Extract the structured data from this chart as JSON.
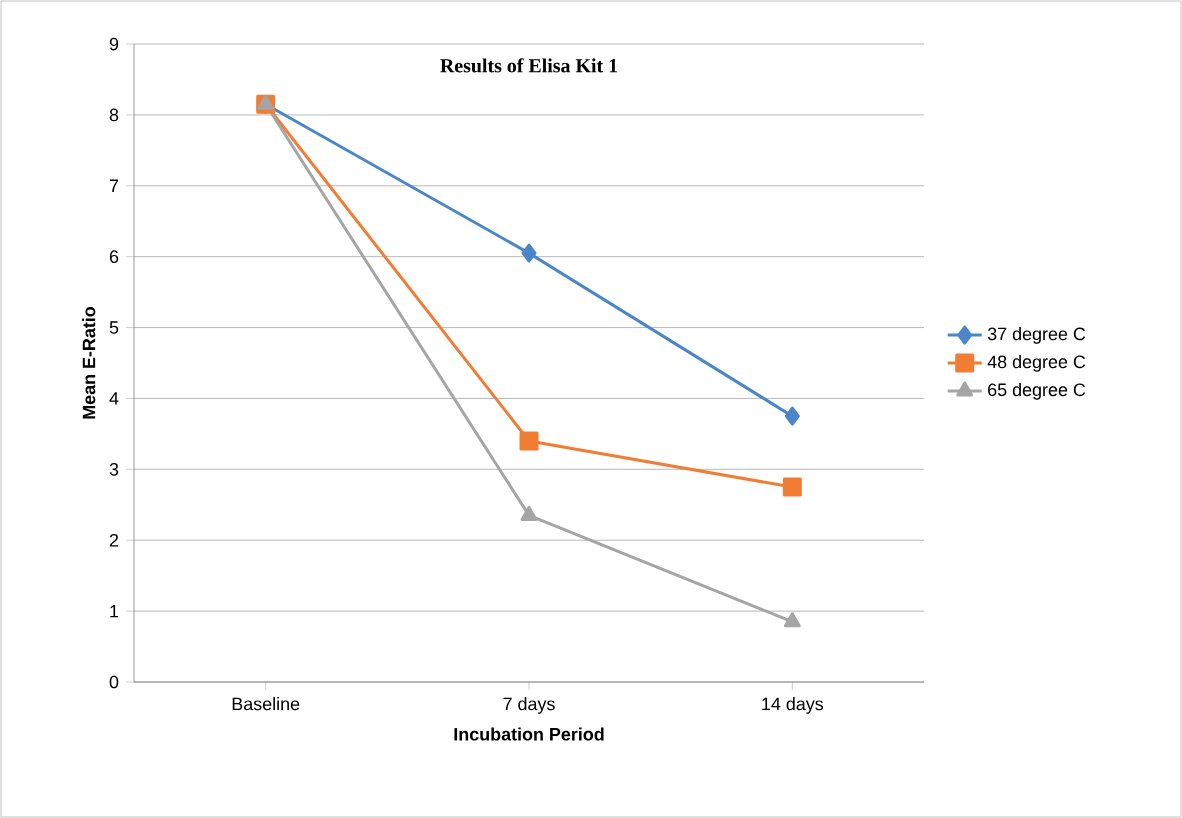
{
  "chart_data": {
    "type": "line",
    "title": "Results of Elisa Kit 1",
    "xlabel": "Incubation Period",
    "ylabel": "Mean E-Ratio",
    "categories": [
      "Baseline",
      "7 days",
      "14 days"
    ],
    "series": [
      {
        "name": "37 degree C",
        "color": "#4a86c8",
        "marker": "diamond",
        "values": [
          8.15,
          6.05,
          3.75
        ]
      },
      {
        "name": "48 degree C",
        "color": "#f07d33",
        "marker": "square",
        "values": [
          8.15,
          3.4,
          2.75
        ]
      },
      {
        "name": "65 degree C",
        "color": "#a5a5a5",
        "marker": "triangle",
        "values": [
          8.15,
          2.35,
          0.85
        ]
      }
    ],
    "ylim": [
      0,
      9
    ],
    "yticks": [
      0,
      1,
      2,
      3,
      4,
      5,
      6,
      7,
      8,
      9
    ],
    "grid": "y",
    "legend": "right",
    "line_style": "solid"
  }
}
